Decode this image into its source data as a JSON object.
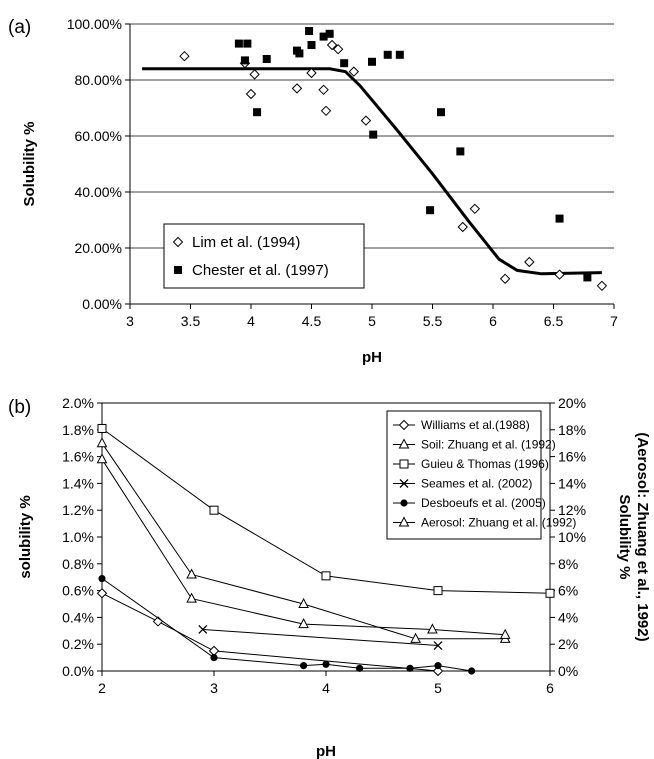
{
  "chart_data": [
    {
      "panel_label": "(a)",
      "type": "scatter",
      "xlabel": "pH",
      "ylabel": "Solubility %",
      "xlim": [
        3,
        7
      ],
      "ylim": [
        0,
        1.0
      ],
      "x_ticks": [
        "3",
        "3.5",
        "4",
        "4.5",
        "5",
        "5.5",
        "6",
        "6.5",
        "7"
      ],
      "y_ticks": [
        "0.00%",
        "20.00%",
        "40.00%",
        "60.00%",
        "80.00%",
        "100.00%"
      ],
      "grid": "horizontal",
      "legend_position": "bottom-left",
      "series": [
        {
          "name": "Lim et al. (1994)",
          "marker": "diamond-open",
          "points": [
            [
              3.45,
              0.885
            ],
            [
              3.95,
              0.86
            ],
            [
              4.0,
              0.75
            ],
            [
              4.03,
              0.82
            ],
            [
              4.38,
              0.77
            ],
            [
              4.5,
              0.825
            ],
            [
              4.6,
              0.765
            ],
            [
              4.62,
              0.69
            ],
            [
              4.67,
              0.925
            ],
            [
              4.72,
              0.91
            ],
            [
              4.85,
              0.83
            ],
            [
              4.95,
              0.655
            ],
            [
              5.75,
              0.275
            ],
            [
              5.85,
              0.34
            ],
            [
              6.1,
              0.09
            ],
            [
              6.3,
              0.15
            ],
            [
              6.55,
              0.105
            ],
            [
              6.9,
              0.065
            ]
          ]
        },
        {
          "name": "Chester et al. (1997)",
          "marker": "square-filled",
          "points": [
            [
              3.9,
              0.93
            ],
            [
              3.95,
              0.87
            ],
            [
              3.97,
              0.93
            ],
            [
              4.05,
              0.685
            ],
            [
              4.13,
              0.875
            ],
            [
              4.38,
              0.905
            ],
            [
              4.4,
              0.895
            ],
            [
              4.48,
              0.975
            ],
            [
              4.5,
              0.925
            ],
            [
              4.6,
              0.955
            ],
            [
              4.65,
              0.965
            ],
            [
              4.77,
              0.86
            ],
            [
              5.0,
              0.865
            ],
            [
              5.01,
              0.605
            ],
            [
              5.13,
              0.89
            ],
            [
              5.23,
              0.89
            ],
            [
              5.48,
              0.335
            ],
            [
              5.57,
              0.685
            ],
            [
              5.73,
              0.545
            ],
            [
              6.55,
              0.305
            ],
            [
              6.78,
              0.095
            ]
          ]
        },
        {
          "name": "fit",
          "marker": "line",
          "points": [
            [
              3.1,
              0.84
            ],
            [
              4.65,
              0.84
            ],
            [
              4.78,
              0.83
            ],
            [
              4.9,
              0.78
            ],
            [
              5.2,
              0.625
            ],
            [
              5.5,
              0.465
            ],
            [
              5.8,
              0.295
            ],
            [
              6.05,
              0.16
            ],
            [
              6.2,
              0.12
            ],
            [
              6.4,
              0.108
            ],
            [
              6.9,
              0.112
            ]
          ]
        }
      ]
    },
    {
      "panel_label": "(b)",
      "type": "line",
      "xlabel": "pH",
      "ylabel": "solubility %",
      "ylabel_right": "Solubility %\n(Aerosol: Zhuang et al., 1992)",
      "xlim": [
        2,
        6
      ],
      "ylim": [
        0,
        2.0
      ],
      "ylim_right": [
        0,
        20
      ],
      "x_ticks": [
        "2",
        "3",
        "4",
        "5",
        "6"
      ],
      "y_ticks": [
        "0.0%",
        "0.2%",
        "0.4%",
        "0.6%",
        "0.8%",
        "1.0%",
        "1.2%",
        "1.4%",
        "1.6%",
        "1.8%",
        "2.0%"
      ],
      "y_ticks_right": [
        "0%",
        "2%",
        "4%",
        "6%",
        "8%",
        "10%",
        "12%",
        "14%",
        "16%",
        "18%",
        "20%"
      ],
      "grid": "none",
      "legend_position": "top-right",
      "series": [
        {
          "name": "Williams et al.(1988)",
          "marker": "diamond-open",
          "axis": "left",
          "points": [
            [
              2,
              0.58
            ],
            [
              2.5,
              0.37
            ],
            [
              3,
              0.15
            ],
            [
              5,
              0.0
            ]
          ]
        },
        {
          "name": "Soil: Zhuang et al. (1992)",
          "marker": "triangle-open",
          "axis": "left",
          "points": [
            [
              2,
              1.7
            ],
            [
              2.8,
              0.72
            ],
            [
              3.8,
              0.5
            ],
            [
              4.8,
              0.24
            ],
            [
              5.6,
              0.24
            ]
          ]
        },
        {
          "name": "Guieu & Thomas (1996)",
          "marker": "square-open",
          "axis": "left",
          "points": [
            [
              2,
              1.81
            ],
            [
              3,
              1.2
            ],
            [
              4,
              0.71
            ],
            [
              5,
              0.6
            ],
            [
              6,
              0.58
            ]
          ]
        },
        {
          "name": "Seames et al. (2002)",
          "marker": "x",
          "axis": "left",
          "points": [
            [
              2.9,
              0.31
            ],
            [
              5,
              0.19
            ]
          ]
        },
        {
          "name": "Desboeufs et al. (2005)",
          "marker": "circle-filled",
          "axis": "left",
          "points": [
            [
              2,
              0.69
            ],
            [
              3,
              0.1
            ],
            [
              3.8,
              0.04
            ],
            [
              4,
              0.05
            ],
            [
              4.3,
              0.02
            ],
            [
              4.75,
              0.02
            ],
            [
              5,
              0.04
            ],
            [
              5.3,
              0.0
            ]
          ]
        },
        {
          "name": "Aerosol: Zhuang et al. (1992)",
          "marker": "triangle-open",
          "axis": "right",
          "points": [
            [
              2,
              15.8
            ],
            [
              2.8,
              5.4
            ],
            [
              3.8,
              3.5
            ],
            [
              4.95,
              3.1
            ],
            [
              5.6,
              2.7
            ]
          ]
        }
      ]
    }
  ]
}
